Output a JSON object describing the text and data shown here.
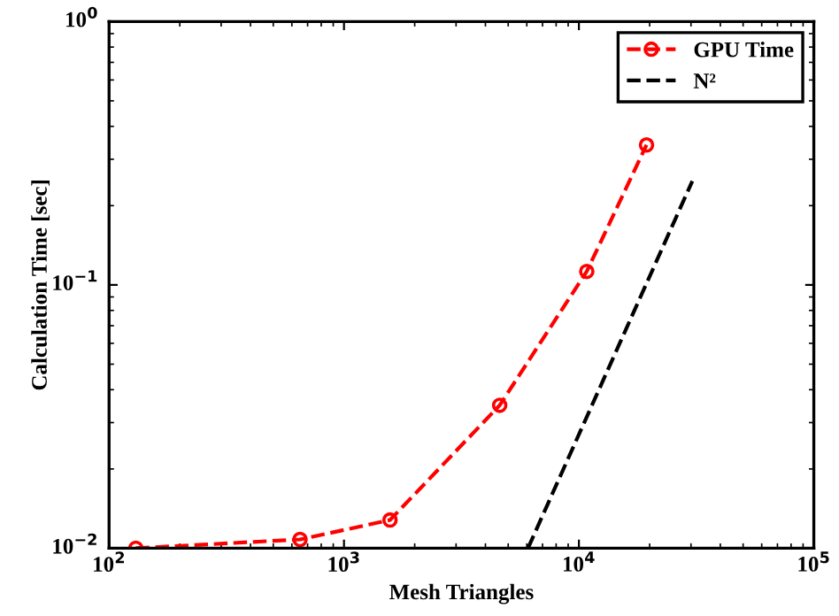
{
  "chart_data": {
    "type": "line",
    "xlabel": "Mesh Triangles",
    "ylabel": "Calculation Time [sec]",
    "log": "xy",
    "xlim": [
      100,
      100000
    ],
    "ylim": [
      0.01,
      1
    ],
    "xticks": [
      {
        "value": 100,
        "label": "10$^{2}$"
      },
      {
        "value": 1000,
        "label": "10$^{3}$"
      },
      {
        "value": 10000,
        "label": "10$^{4}$"
      },
      {
        "value": 100000,
        "label": "10$^{5}$"
      }
    ],
    "yticks": [
      {
        "value": 0.01,
        "label": "10$^{−2}$"
      },
      {
        "value": 0.1,
        "label": "10$^{−1}$"
      },
      {
        "value": 1,
        "label": "10$^{0}$"
      }
    ],
    "grid": false,
    "legend": "top right",
    "series": [
      {
        "name": "GPU Time",
        "color": "#ff0000",
        "marker": "circle",
        "line_style": "dashed",
        "x": [
          130,
          650,
          1570,
          4600,
          10800,
          19400
        ],
        "values": [
          0.01,
          0.0108,
          0.0128,
          0.0349,
          0.1125,
          0.34
        ]
      },
      {
        "name": "N²",
        "color": "#000000",
        "marker": "none",
        "line_style": "dashed",
        "x": [
          6070,
          30400
        ],
        "values": [
          0.01,
          0.248
        ]
      }
    ]
  }
}
